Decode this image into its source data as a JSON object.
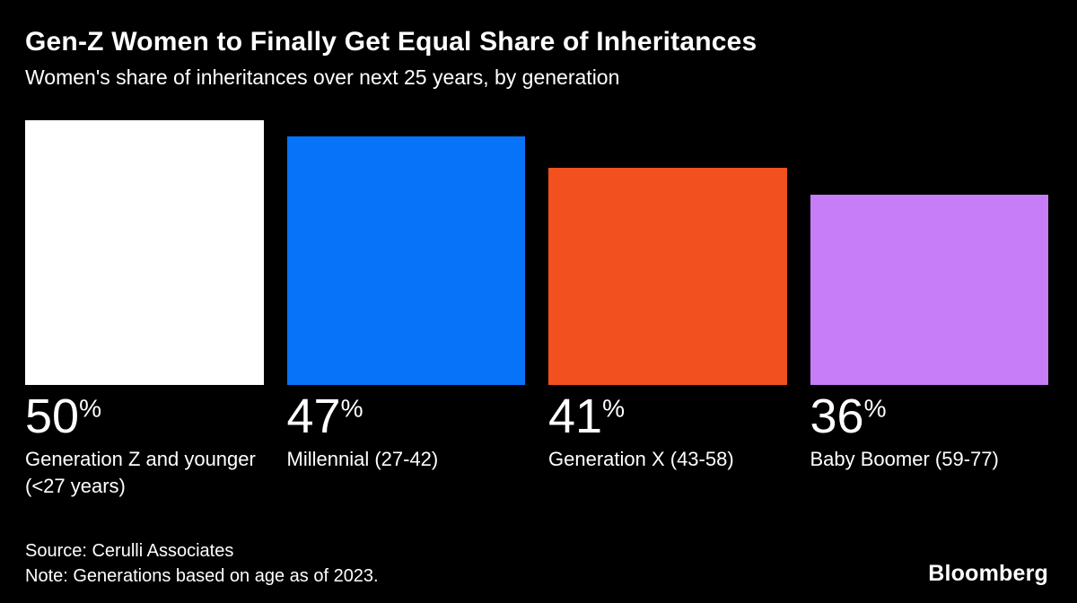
{
  "header": {
    "title": "Gen-Z Women to Finally Get Equal Share of Inheritances",
    "subtitle": "Women's share of inheritances over next 25 years, by generation"
  },
  "chart_data": {
    "type": "bar",
    "title": "Gen-Z Women to Finally Get Equal Share of Inheritances",
    "subtitle": "Women's share of inheritances over next 25 years, by generation",
    "unit": "%",
    "ylim": [
      0,
      50
    ],
    "grid": false,
    "legend": "none",
    "categories": [
      "Generation Z and younger (<27 years)",
      "Millennial (27-42)",
      "Generation X (43-58)",
      "Baby Boomer (59-77)"
    ],
    "values": [
      50,
      47,
      41,
      36
    ],
    "colors": [
      "#ffffff",
      "#0673f9",
      "#f2501e",
      "#c77df7"
    ],
    "bars": [
      {
        "value": 50,
        "value_label": "50",
        "unit": "%",
        "label": "Generation Z and younger (<27 years)",
        "color": "#ffffff"
      },
      {
        "value": 47,
        "value_label": "47",
        "unit": "%",
        "label": "Millennial (27-42)",
        "color": "#0673f9"
      },
      {
        "value": 41,
        "value_label": "41",
        "unit": "%",
        "label": "Generation X (43-58)",
        "color": "#f2501e"
      },
      {
        "value": 36,
        "value_label": "36",
        "unit": "%",
        "label": "Baby Boomer (59-77)",
        "color": "#c77df7"
      }
    ]
  },
  "footer": {
    "source": "Source: Cerulli Associates",
    "note": "Note: Generations based on age as of 2023.",
    "brand": "Bloomberg"
  },
  "colors": {
    "background": "#000000",
    "text": "#ffffff"
  }
}
